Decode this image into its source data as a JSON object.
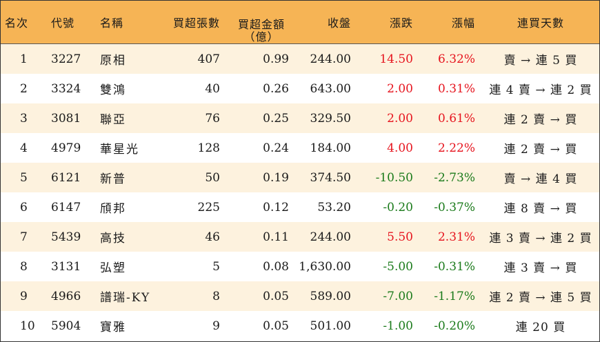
{
  "header": {
    "rank": "名次",
    "code": "代號",
    "name": "名稱",
    "net_buy_lots": "買超張數",
    "net_buy_amount_line1": "買超金額",
    "net_buy_amount_line2": "（億）",
    "close": "收盤",
    "change": "漲跌",
    "change_pct": "漲幅",
    "streak": "連買天數"
  },
  "colors": {
    "header_bg": "#f6b455",
    "odd_row_bg": "#fdf2de",
    "up": "#e6141e",
    "down": "#1a7a1a"
  },
  "rows": [
    {
      "rank": "1",
      "code": "3227",
      "name": "原相",
      "lots": "407",
      "amount": "0.99",
      "close": "244.00",
      "change": "14.50",
      "pct": "6.32%",
      "dir": "up",
      "streak": "賣 → 連 5 買"
    },
    {
      "rank": "2",
      "code": "3324",
      "name": "雙鴻",
      "lots": "40",
      "amount": "0.26",
      "close": "643.00",
      "change": "2.00",
      "pct": "0.31%",
      "dir": "up",
      "streak": "連 4 賣 → 連 2 買"
    },
    {
      "rank": "3",
      "code": "3081",
      "name": "聯亞",
      "lots": "76",
      "amount": "0.25",
      "close": "329.50",
      "change": "2.00",
      "pct": "0.61%",
      "dir": "up",
      "streak": "連 2 賣 → 買"
    },
    {
      "rank": "4",
      "code": "4979",
      "name": "華星光",
      "lots": "128",
      "amount": "0.24",
      "close": "184.00",
      "change": "4.00",
      "pct": "2.22%",
      "dir": "up",
      "streak": "連 2 賣 → 買"
    },
    {
      "rank": "5",
      "code": "6121",
      "name": "新普",
      "lots": "50",
      "amount": "0.19",
      "close": "374.50",
      "change": "-10.50",
      "pct": "-2.73%",
      "dir": "down",
      "streak": "賣 → 連 4 買"
    },
    {
      "rank": "6",
      "code": "6147",
      "name": "頎邦",
      "lots": "225",
      "amount": "0.12",
      "close": "53.20",
      "change": "-0.20",
      "pct": "-0.37%",
      "dir": "down",
      "streak": "連 8 賣 → 買"
    },
    {
      "rank": "7",
      "code": "5439",
      "name": "高技",
      "lots": "46",
      "amount": "0.11",
      "close": "244.00",
      "change": "5.50",
      "pct": "2.31%",
      "dir": "up",
      "streak": "連 3 賣 → 連 2 買"
    },
    {
      "rank": "8",
      "code": "3131",
      "name": "弘塑",
      "lots": "5",
      "amount": "0.08",
      "close": "1,630.00",
      "change": "-5.00",
      "pct": "-0.31%",
      "dir": "down",
      "streak": "連 3 賣 → 買"
    },
    {
      "rank": "9",
      "code": "4966",
      "name": "譜瑞-KY",
      "lots": "8",
      "amount": "0.05",
      "close": "589.00",
      "change": "-7.00",
      "pct": "-1.17%",
      "dir": "down",
      "streak": "連 2 賣 → 連 5 買"
    },
    {
      "rank": "10",
      "code": "5904",
      "name": "寶雅",
      "lots": "9",
      "amount": "0.05",
      "close": "501.00",
      "change": "-1.00",
      "pct": "-0.20%",
      "dir": "down",
      "streak": "連 20 買"
    }
  ]
}
